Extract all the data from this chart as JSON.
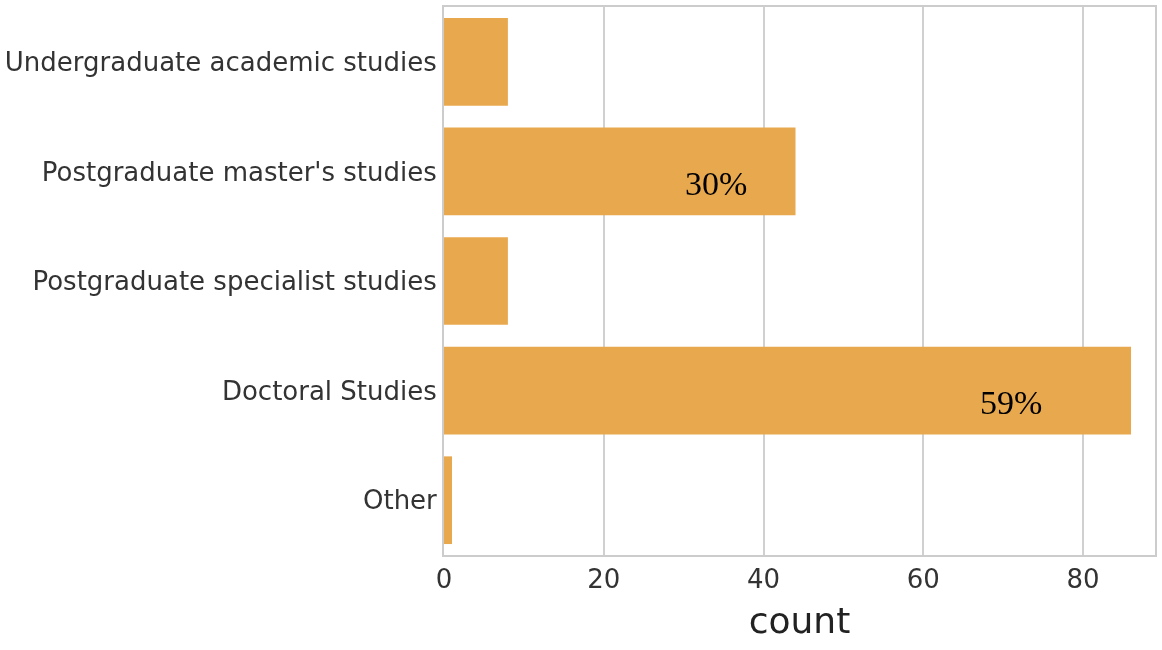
{
  "chart_data": {
    "type": "bar",
    "orientation": "horizontal",
    "xlabel": "count",
    "categories": [
      "Undergraduate academic studies",
      "Postgraduate master's studies",
      "Postgraduate specialist studies",
      "Doctoral Studies",
      "Other"
    ],
    "values": [
      8,
      44,
      8,
      86,
      1
    ],
    "annotations": [
      {
        "text": "30%",
        "x": 34,
        "y": "Postgraduate master's studies"
      },
      {
        "text": "59%",
        "x": 71,
        "y": "Doctoral Studies"
      }
    ],
    "color": "#e8a94e",
    "xlim": [
      0,
      89
    ],
    "xticks": [
      0,
      20,
      40,
      60,
      80
    ],
    "grid": "x"
  }
}
